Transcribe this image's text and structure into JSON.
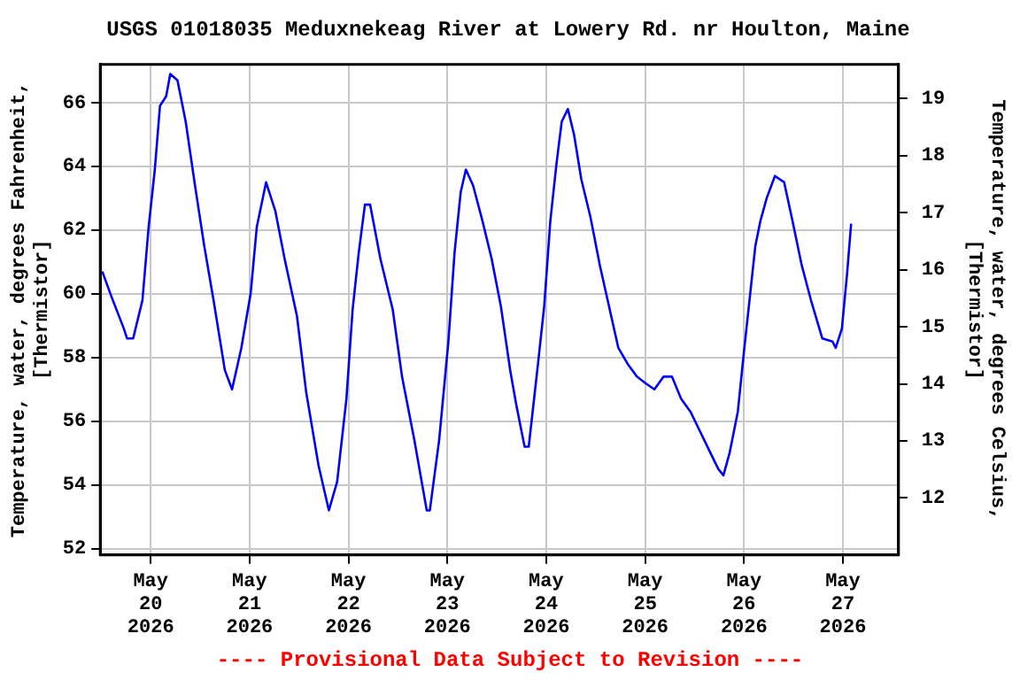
{
  "chart_data": {
    "type": "line",
    "title": "USGS 01018035 Meduxnekeag River at Lowery Rd. nr Houlton, Maine",
    "ylabel": "Temperature, water, degrees Fahrenheit, [Thermistor]",
    "y2label": "Temperature, water, degrees Celsius, [Thermistor]",
    "annotations": [
      "---- Provisional Data Subject to Revision ----"
    ],
    "x": [
      "2026-05-19T12:15",
      "2026-05-19T14:30",
      "2026-05-19T17:30",
      "2026-05-19T18:15",
      "2026-05-19T19:45",
      "2026-05-19T22:00",
      "2026-05-19T23:30",
      "2026-05-20T01:00",
      "2026-05-20T02:15",
      "2026-05-20T03:45",
      "2026-05-20T04:45",
      "2026-05-20T06:30",
      "2026-05-20T08:30",
      "2026-05-20T10:45",
      "2026-05-20T13:00",
      "2026-05-20T15:15",
      "2026-05-20T18:00",
      "2026-05-20T19:45",
      "2026-05-20T22:00",
      "2026-05-21T00:15",
      "2026-05-21T01:45",
      "2026-05-21T04:00",
      "2026-05-21T06:15",
      "2026-05-21T08:30",
      "2026-05-21T11:30",
      "2026-05-21T13:45",
      "2026-05-21T16:45",
      "2026-05-21T19:15",
      "2026-05-21T21:15",
      "2026-05-21T23:30",
      "2026-05-22T01:00",
      "2026-05-22T02:30",
      "2026-05-22T04:00",
      "2026-05-22T05:15",
      "2026-05-22T07:45",
      "2026-05-22T10:45",
      "2026-05-22T13:00",
      "2026-05-22T16:00",
      "2026-05-22T19:00",
      "2026-05-22T19:45",
      "2026-05-22T22:00",
      "2026-05-23T00:15",
      "2026-05-23T01:45",
      "2026-05-23T03:15",
      "2026-05-23T04:30",
      "2026-05-23T06:15",
      "2026-05-23T08:30",
      "2026-05-23T10:45",
      "2026-05-23T13:00",
      "2026-05-23T15:15",
      "2026-05-23T16:45",
      "2026-05-23T18:45",
      "2026-05-23T19:45",
      "2026-05-23T22:00",
      "2026-05-23T23:30",
      "2026-05-24T01:00",
      "2026-05-24T02:30",
      "2026-05-24T03:45",
      "2026-05-24T05:15",
      "2026-05-24T06:45",
      "2026-05-24T08:30",
      "2026-05-24T10:45",
      "2026-05-24T13:00",
      "2026-05-24T15:15",
      "2026-05-24T17:30",
      "2026-05-24T19:45",
      "2026-05-24T22:00",
      "2026-05-25T00:00",
      "2026-05-25T02:15",
      "2026-05-25T04:30",
      "2026-05-25T06:30",
      "2026-05-25T08:45",
      "2026-05-25T11:00",
      "2026-05-25T13:15",
      "2026-05-25T15:30",
      "2026-05-25T17:45",
      "2026-05-25T19:00",
      "2026-05-25T20:30",
      "2026-05-25T22:30",
      "2026-05-26T00:00",
      "2026-05-26T01:30",
      "2026-05-26T02:45",
      "2026-05-26T04:00",
      "2026-05-26T05:30",
      "2026-05-26T07:30",
      "2026-05-26T09:45",
      "2026-05-26T11:45",
      "2026-05-26T14:00",
      "2026-05-26T16:15",
      "2026-05-26T19:00",
      "2026-05-26T21:30",
      "2026-05-26T22:15",
      "2026-05-26T23:45",
      "2026-05-27T01:00",
      "2026-05-27T02:00"
    ],
    "series": [
      {
        "color": "#0000ff",
        "values": [
          60.7,
          59.9,
          58.9,
          58.6,
          58.6,
          59.8,
          62.1,
          63.9,
          65.9,
          66.2,
          66.9,
          66.7,
          65.4,
          63.4,
          61.5,
          59.8,
          57.6,
          57.0,
          58.3,
          60.0,
          62.1,
          63.5,
          62.6,
          61.1,
          59.3,
          56.9,
          54.6,
          53.2,
          54.1,
          56.7,
          59.5,
          61.3,
          62.8,
          62.8,
          61.1,
          59.5,
          57.4,
          55.4,
          53.2,
          53.2,
          55.4,
          58.5,
          61.3,
          63.2,
          63.9,
          63.4,
          62.3,
          61.1,
          59.6,
          57.6,
          56.5,
          55.2,
          55.2,
          57.8,
          59.6,
          62.3,
          64.1,
          65.4,
          65.8,
          65.0,
          63.6,
          62.4,
          60.9,
          59.6,
          58.3,
          57.8,
          57.4,
          57.2,
          57.0,
          57.4,
          57.4,
          56.7,
          56.3,
          55.7,
          55.1,
          54.5,
          54.3,
          55.0,
          56.3,
          58.2,
          60.0,
          61.5,
          62.3,
          63.0,
          63.7,
          63.5,
          62.3,
          60.9,
          59.8,
          58.6,
          58.5,
          58.3,
          58.9,
          60.6,
          62.2
        ]
      }
    ],
    "xlim": [
      "2026-05-19T11:45",
      "2026-05-27T13:30"
    ],
    "xticks": [
      {
        "value": "2026-05-20",
        "label": "May 20 2026"
      },
      {
        "value": "2026-05-21",
        "label": "May 21 2026"
      },
      {
        "value": "2026-05-22",
        "label": "May 22 2026"
      },
      {
        "value": "2026-05-23",
        "label": "May 23 2026"
      },
      {
        "value": "2026-05-24",
        "label": "May 24 2026"
      },
      {
        "value": "2026-05-25",
        "label": "May 25 2026"
      },
      {
        "value": "2026-05-26",
        "label": "May 26 2026"
      },
      {
        "value": "2026-05-27",
        "label": "May 27 2026"
      }
    ],
    "ylim": [
      51.8,
      67.2
    ],
    "yticks": [
      52,
      54,
      56,
      58,
      60,
      62,
      64,
      66
    ],
    "y2lim": [
      11.0,
      19.6
    ],
    "y2ticks": [
      12,
      13,
      14,
      15,
      16,
      17,
      18,
      19
    ],
    "grid": true,
    "legend": false,
    "marker": "none",
    "line_style": "solid"
  }
}
